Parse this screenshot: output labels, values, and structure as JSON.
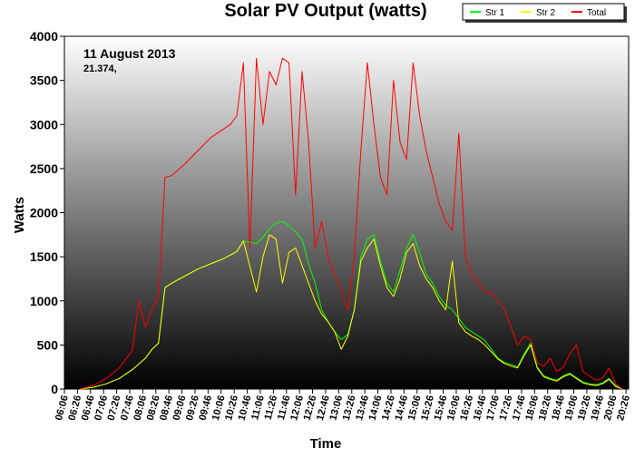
{
  "chart_data": {
    "type": "line",
    "title": "Solar PV Output (watts)",
    "xlabel": "Time",
    "ylabel": "Watts",
    "date_label": "11 August 2013",
    "kwh_label": "21.374,",
    "ylim": [
      0,
      4000
    ],
    "yticks": [
      0,
      500,
      1000,
      1500,
      2000,
      2500,
      3000,
      3500,
      4000
    ],
    "xlim_minutes": [
      366,
      1230
    ],
    "xticks": [
      "06:06",
      "06:26",
      "06:46",
      "07:06",
      "07:26",
      "07:46",
      "08:06",
      "08:26",
      "08:46",
      "09:06",
      "09:26",
      "09:46",
      "10:06",
      "10:26",
      "10:46",
      "11:06",
      "11:26",
      "11:46",
      "12:06",
      "12:26",
      "12:46",
      "13:06",
      "13:26",
      "13:46",
      "14:06",
      "14:26",
      "14:46",
      "15:06",
      "15:26",
      "15:46",
      "16:06",
      "16:26",
      "16:46",
      "17:06",
      "17:26",
      "17:46",
      "18:06",
      "18:26",
      "18:46",
      "19:06",
      "19:26",
      "19:46",
      "20:06",
      "20:26"
    ],
    "legend_position": "top-right",
    "grid": false,
    "background": "gradient white-to-black",
    "series": [
      {
        "name": "Str 1",
        "color": "#00ff00",
        "x": [
          "06:30",
          "06:50",
          "07:10",
          "07:30",
          "07:50",
          "08:10",
          "08:20",
          "08:30",
          "08:40",
          "08:50",
          "09:10",
          "09:30",
          "09:50",
          "10:10",
          "10:30",
          "10:40",
          "11:00",
          "11:10",
          "11:20",
          "11:30",
          "11:40",
          "11:50",
          "12:00",
          "12:10",
          "12:20",
          "12:30",
          "12:40",
          "12:50",
          "13:00",
          "13:10",
          "13:20",
          "13:30",
          "13:40",
          "13:50",
          "14:00",
          "14:10",
          "14:20",
          "14:30",
          "14:40",
          "14:50",
          "15:00",
          "15:10",
          "15:20",
          "15:30",
          "15:40",
          "15:50",
          "16:00",
          "16:10",
          "16:20",
          "16:30",
          "16:40",
          "16:50",
          "17:00",
          "17:10",
          "17:20",
          "17:30",
          "17:40",
          "17:50",
          "18:00",
          "18:10",
          "18:20",
          "18:30",
          "18:40",
          "18:50",
          "19:00",
          "19:10",
          "19:20",
          "19:30",
          "19:40",
          "19:50",
          "20:00",
          "20:10",
          "20:20"
        ],
        "values": [
          0,
          20,
          60,
          120,
          220,
          350,
          450,
          520,
          1150,
          1200,
          1280,
          1360,
          1420,
          1480,
          1560,
          1680,
          1650,
          1720,
          1820,
          1880,
          1900,
          1850,
          1780,
          1700,
          1420,
          1200,
          900,
          760,
          650,
          560,
          620,
          900,
          1500,
          1700,
          1750,
          1450,
          1200,
          1100,
          1350,
          1600,
          1750,
          1550,
          1300,
          1200,
          1050,
          950,
          900,
          800,
          700,
          650,
          600,
          550,
          450,
          350,
          300,
          280,
          250,
          400,
          520,
          250,
          150,
          120,
          100,
          150,
          180,
          130,
          80,
          60,
          50,
          70,
          120,
          40,
          0
        ]
      },
      {
        "name": "Str 2",
        "color": "#ffff00",
        "x": [
          "06:30",
          "06:50",
          "07:10",
          "07:30",
          "07:50",
          "08:10",
          "08:20",
          "08:30",
          "08:40",
          "08:50",
          "09:10",
          "09:30",
          "09:50",
          "10:10",
          "10:30",
          "10:40",
          "11:00",
          "11:10",
          "11:20",
          "11:30",
          "11:40",
          "11:50",
          "12:00",
          "12:10",
          "12:20",
          "12:30",
          "12:40",
          "12:50",
          "13:00",
          "13:10",
          "13:20",
          "13:30",
          "13:40",
          "13:50",
          "14:00",
          "14:10",
          "14:20",
          "14:30",
          "14:40",
          "14:50",
          "15:00",
          "15:10",
          "15:20",
          "15:30",
          "15:40",
          "15:50",
          "16:00",
          "16:10",
          "16:20",
          "16:30",
          "16:40",
          "16:50",
          "17:00",
          "17:10",
          "17:20",
          "17:30",
          "17:40",
          "17:50",
          "18:00",
          "18:10",
          "18:20",
          "18:30",
          "18:40",
          "18:50",
          "19:00",
          "19:10",
          "19:20",
          "19:30",
          "19:40",
          "19:50",
          "20:00",
          "20:10",
          "20:20"
        ],
        "values": [
          0,
          20,
          60,
          120,
          220,
          350,
          450,
          520,
          1150,
          1200,
          1280,
          1360,
          1420,
          1480,
          1560,
          1680,
          1100,
          1500,
          1750,
          1700,
          1200,
          1550,
          1600,
          1400,
          1200,
          1000,
          850,
          760,
          650,
          450,
          600,
          900,
          1450,
          1600,
          1700,
          1400,
          1150,
          1050,
          1250,
          1550,
          1650,
          1400,
          1250,
          1150,
          1000,
          900,
          1450,
          750,
          650,
          600,
          560,
          500,
          420,
          340,
          290,
          260,
          240,
          380,
          500,
          240,
          140,
          110,
          90,
          140,
          170,
          120,
          70,
          50,
          40,
          60,
          110,
          30,
          0
        ]
      },
      {
        "name": "Total",
        "color": "#ff0000",
        "x": [
          "06:30",
          "06:50",
          "07:10",
          "07:30",
          "07:50",
          "08:00",
          "08:10",
          "08:20",
          "08:30",
          "08:40",
          "08:50",
          "09:10",
          "09:30",
          "09:50",
          "10:10",
          "10:20",
          "10:30",
          "10:40",
          "10:50",
          "11:00",
          "11:10",
          "11:20",
          "11:30",
          "11:40",
          "11:50",
          "12:00",
          "12:10",
          "12:20",
          "12:30",
          "12:40",
          "12:50",
          "13:00",
          "13:10",
          "13:20",
          "13:30",
          "13:40",
          "13:50",
          "14:00",
          "14:10",
          "14:20",
          "14:30",
          "14:40",
          "14:50",
          "15:00",
          "15:10",
          "15:20",
          "15:30",
          "15:40",
          "15:50",
          "16:00",
          "16:10",
          "16:20",
          "16:30",
          "16:40",
          "16:50",
          "17:00",
          "17:10",
          "17:20",
          "17:30",
          "17:40",
          "17:50",
          "18:00",
          "18:10",
          "18:20",
          "18:30",
          "18:40",
          "18:50",
          "19:00",
          "19:10",
          "19:20",
          "19:30",
          "19:40",
          "19:50",
          "20:00",
          "20:10",
          "20:20"
        ],
        "values": [
          0,
          40,
          120,
          240,
          440,
          1000,
          700,
          900,
          1040,
          2400,
          2420,
          2550,
          2700,
          2850,
          2950,
          3000,
          3100,
          3700,
          1600,
          3750,
          3000,
          3600,
          3450,
          3750,
          3700,
          2200,
          3600,
          2800,
          1600,
          1900,
          1500,
          1300,
          1120,
          900,
          1500,
          2700,
          3700,
          3000,
          2400,
          2200,
          3500,
          2800,
          2600,
          3700,
          3100,
          2700,
          2400,
          2100,
          1900,
          1800,
          2900,
          1500,
          1300,
          1200,
          1100,
          1100,
          1000,
          900,
          700,
          500,
          600,
          560,
          300,
          260,
          350,
          200,
          250,
          400,
          500,
          200,
          150,
          100,
          120,
          240,
          60,
          0
        ]
      }
    ]
  }
}
